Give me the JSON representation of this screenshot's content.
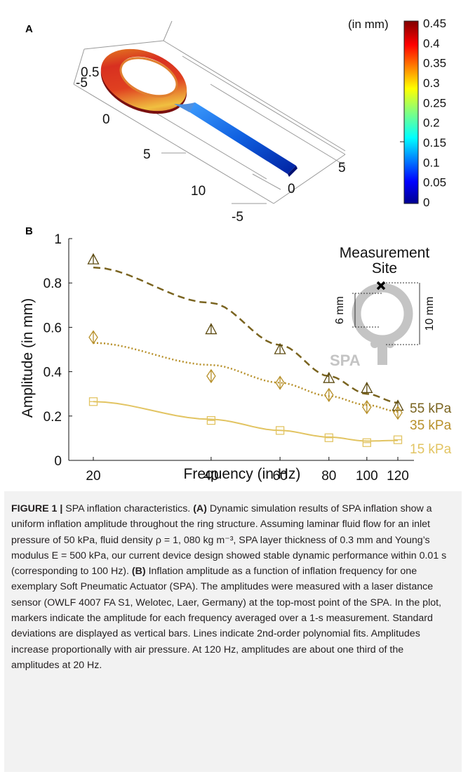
{
  "panel_a": {
    "letter": "A",
    "colorbar_title": "(in mm)",
    "colorbar_ticks": [
      "0.45",
      "0.4",
      "0.35",
      "0.3",
      "0.25",
      "0.2",
      "0.15",
      "0.1",
      "0.05",
      "0"
    ],
    "colormap": "jet",
    "axis_ticks": {
      "left_top": "0.5",
      "left_neg": "-5",
      "x_ticks": [
        "0",
        "5",
        "10"
      ],
      "y_ticks": [
        "5",
        "0",
        "-5"
      ]
    }
  },
  "panel_b": {
    "letter": "B",
    "inset": {
      "title_line1": "Measurement",
      "title_line2": "Site",
      "dim_left": "6 mm",
      "dim_right": "10 mm",
      "label": "SPA"
    }
  },
  "chart_data": {
    "type": "scatter",
    "title": "",
    "xlabel": "Frequency (in Hz)",
    "ylabel": "Amplitude (in mm)",
    "x_scale": "log",
    "xlim": [
      20,
      120
    ],
    "ylim": [
      0,
      1
    ],
    "x_ticks": [
      "20",
      "40",
      "60",
      "80",
      "100",
      "120"
    ],
    "y_ticks": [
      "0",
      "0.2",
      "0.4",
      "0.6",
      "0.8",
      "1"
    ],
    "grid": false,
    "x": [
      20,
      40,
      60,
      80,
      100,
      120
    ],
    "series": [
      {
        "name": "55 kPa",
        "marker": "triangle",
        "line_style": "dashed",
        "color": "#7a6420",
        "values": [
          0.905,
          0.59,
          0.5,
          0.37,
          0.325,
          0.245
        ],
        "fit": [
          0.87,
          0.71,
          0.52,
          0.38,
          0.3,
          0.26
        ]
      },
      {
        "name": "35 kPa",
        "marker": "diamond",
        "line_style": "dotted",
        "color": "#b7902a",
        "values": [
          0.555,
          0.38,
          0.35,
          0.295,
          0.24,
          0.215
        ],
        "fit": [
          0.53,
          0.43,
          0.35,
          0.29,
          0.25,
          0.22
        ]
      },
      {
        "name": "15 kPa",
        "marker": "square",
        "line_style": "solid",
        "color": "#e2c462",
        "values": [
          0.265,
          0.18,
          0.135,
          0.102,
          0.08,
          0.093
        ],
        "fit": [
          0.265,
          0.185,
          0.135,
          0.105,
          0.087,
          0.09
        ]
      }
    ]
  },
  "caption": {
    "label": "FIGURE 1 |",
    "title": " SPA inflation characteristics. ",
    "a_tag": "(A)",
    "a_text": " Dynamic simulation results of SPA inflation show a uniform inflation amplitude throughout the ring structure. Assuming laminar fluid flow for an inlet pressure of 50 kPa, fluid density ρ = 1, 080 kg m⁻³, SPA layer thickness of 0.3 mm and Young’s modulus E = 500 kPa, our current device design showed stable dynamic performance within 0.01 s (corresponding to 100 Hz). ",
    "b_tag": "(B)",
    "b_text": " Inflation amplitude as a function of inflation frequency for one exemplary Soft Pneumatic Actuator (SPA). The amplitudes were measured with a laser distance sensor (OWLF 4007 FA S1, Welotec, Laer, Germany) at the top-most point of the SPA. In the plot, markers indicate the amplitude for each frequency averaged over a 1-s measurement. Standard deviations are displayed as vertical bars. Lines indicate 2nd-order polynomial fits. Amplitudes increase proportionally with air pressure. At 120 Hz, amplitudes are about one third of the amplitudes at 20 Hz."
  }
}
